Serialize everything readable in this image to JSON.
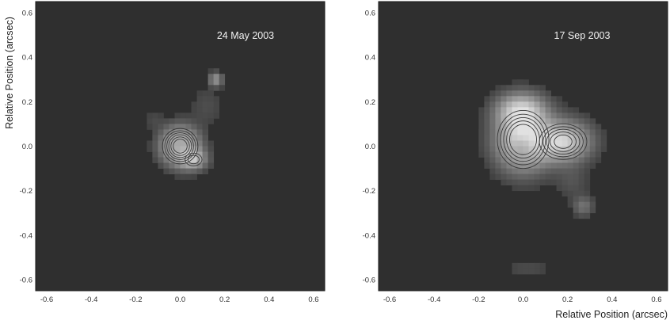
{
  "chart_data": [
    {
      "type": "heatmap",
      "date_label": "24 May 2003",
      "xlabel": "",
      "ylabel": "Relative Position (arcsec)",
      "xlim": [
        -0.65,
        0.65
      ],
      "ylim": [
        -0.65,
        0.65
      ],
      "xticks": [
        -0.6,
        -0.4,
        -0.2,
        0.0,
        0.2,
        0.4,
        0.6
      ],
      "yticks": [
        -0.6,
        -0.4,
        -0.2,
        0.0,
        0.2,
        0.4,
        0.6
      ],
      "xtick_labels": [
        "-0.6",
        "-0.4",
        "-0.2",
        "0.0",
        "0.2",
        "0.4",
        "0.6"
      ],
      "ytick_labels": [
        "-0.6",
        "-0.4",
        "-0.2",
        "0.0",
        "0.2",
        "0.4",
        "0.6"
      ],
      "grid": false,
      "background_color": "#2f2f2f",
      "pixel_size_arcsec": 0.025,
      "sources": [
        {
          "x": 0.0,
          "y": 0.0,
          "sx": 0.055,
          "sy": 0.055,
          "amp": 1.0
        },
        {
          "x": 0.06,
          "y": -0.06,
          "sx": 0.04,
          "sy": 0.03,
          "amp": 0.55
        },
        {
          "x": 0.16,
          "y": 0.3,
          "sx": 0.02,
          "sy": 0.02,
          "amp": 0.45
        },
        {
          "x": 0.12,
          "y": 0.18,
          "sx": 0.05,
          "sy": 0.06,
          "amp": 0.08
        },
        {
          "x": -0.12,
          "y": 0.12,
          "sx": 0.03,
          "sy": 0.03,
          "amp": 0.06
        }
      ],
      "core_dip": {
        "x": 0.0,
        "y": 0.0,
        "s": 0.03,
        "amp": 0.45
      },
      "contour_levels": [
        0.35,
        0.45,
        0.55,
        0.65,
        0.75,
        0.85
      ]
    },
    {
      "type": "heatmap",
      "date_label": "17 Sep 2003",
      "xlabel": "Relative Position (arcsec)",
      "ylabel": "",
      "xlim": [
        -0.65,
        0.65
      ],
      "ylim": [
        -0.65,
        0.65
      ],
      "xticks": [
        -0.6,
        -0.4,
        -0.2,
        0.0,
        0.2,
        0.4,
        0.6
      ],
      "yticks": [
        -0.6,
        -0.4,
        -0.2,
        0.0,
        0.2,
        0.4,
        0.6
      ],
      "xtick_labels": [
        "-0.6",
        "-0.4",
        "-0.2",
        "0.0",
        "0.2",
        "0.4",
        "0.6"
      ],
      "ytick_labels": [
        "-0.6",
        "-0.4",
        "-0.2",
        "0.0",
        "0.2",
        "0.4",
        "0.6"
      ],
      "grid": false,
      "background_color": "#2f2f2f",
      "pixel_size_arcsec": 0.025,
      "sources": [
        {
          "x": 0.0,
          "y": 0.03,
          "sx": 0.08,
          "sy": 0.09,
          "amp": 1.0
        },
        {
          "x": 0.18,
          "y": 0.02,
          "sx": 0.08,
          "sy": 0.06,
          "amp": 0.85
        },
        {
          "x": -0.01,
          "y": 0.16,
          "sx": 0.07,
          "sy": 0.05,
          "amp": 0.7
        },
        {
          "x": 0.27,
          "y": -0.27,
          "sx": 0.03,
          "sy": 0.03,
          "amp": 0.25
        },
        {
          "x": 0.22,
          "y": -0.16,
          "sx": 0.05,
          "sy": 0.05,
          "amp": 0.1
        },
        {
          "x": 0.02,
          "y": -0.55,
          "sx": 0.08,
          "sy": 0.03,
          "amp": 0.07
        }
      ],
      "core_dip": {
        "x": 0.0,
        "y": 0.0,
        "s": 0.035,
        "amp": 0.35
      },
      "contour_levels": [
        0.35,
        0.45,
        0.55,
        0.65,
        0.75
      ]
    }
  ]
}
